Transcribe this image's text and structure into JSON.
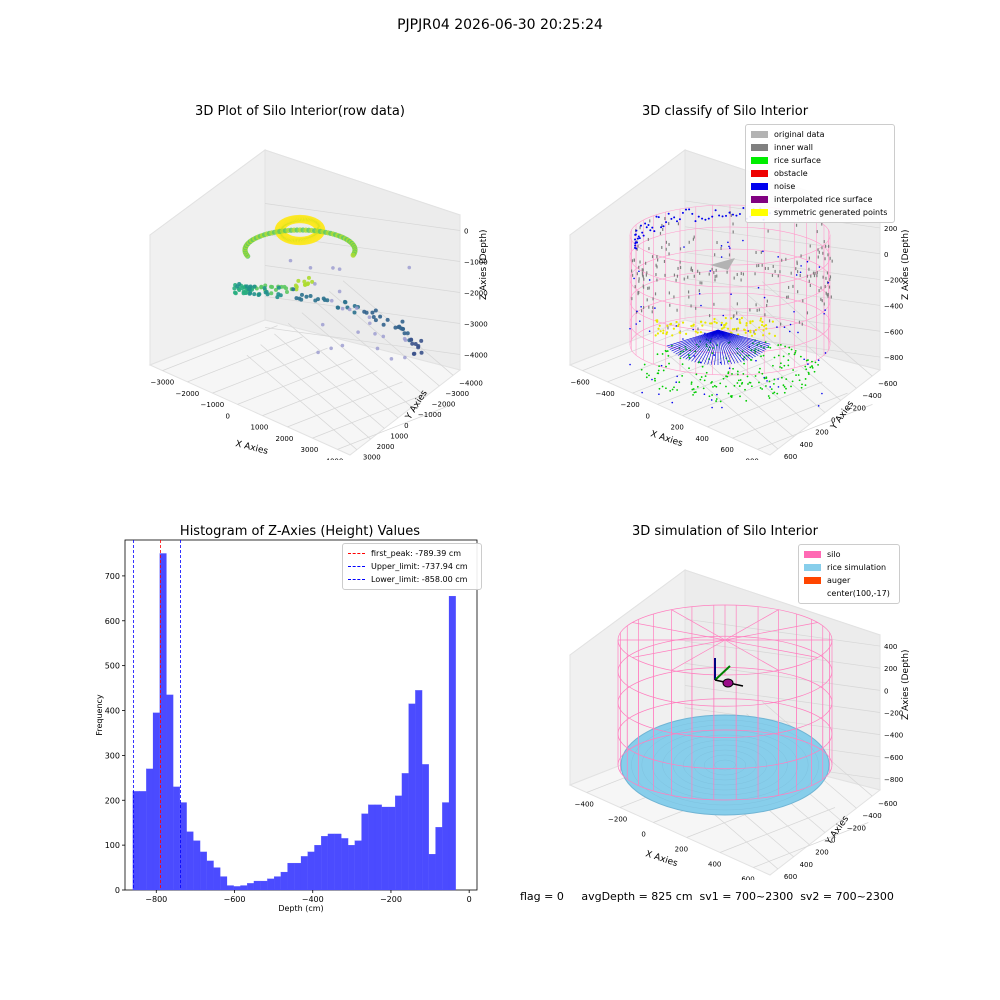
{
  "suptitle": "PJPJR04 2026-06-30 20:25:24",
  "footer": "flag = 0     avgDepth = 825 cm  sv1 = 700~2300  sv2 = 700~2300",
  "panels": {
    "raw": {
      "title": "3D Plot of Silo Interior(row data)",
      "xlabel": "X Axies",
      "ylabel": "Y Axies",
      "zlabel": "Z Axies (Depth)",
      "xticks": [
        "−3000",
        "−2000",
        "−1000",
        "0",
        "1000",
        "2000",
        "3000",
        "4000"
      ],
      "yticks": [
        "3000",
        "2000",
        "1000",
        "0",
        "−1000",
        "−2000",
        "−3000",
        "−4000"
      ],
      "zticks": [
        "0",
        "−1000",
        "−2000",
        "−3000",
        "−4000"
      ]
    },
    "classify": {
      "title": "3D classify of Silo Interior",
      "xlabel": "X Axies",
      "ylabel": "Y Axies",
      "zlabel": "Z Axies (Depth)",
      "xticks": [
        "−600",
        "−400",
        "−200",
        "0",
        "200",
        "400",
        "600",
        "800"
      ],
      "yticks": [
        "600",
        "400",
        "200",
        "0",
        "−200",
        "−400",
        "−600"
      ],
      "zticks": [
        "200",
        "0",
        "−200",
        "−400",
        "−600",
        "−800"
      ],
      "legend": [
        {
          "label": "original data",
          "color": "#b3b3b3"
        },
        {
          "label": "inner wall",
          "color": "#808080"
        },
        {
          "label": "rice surface",
          "color": "#00ee00"
        },
        {
          "label": "obstacle",
          "color": "#ee0000"
        },
        {
          "label": "noise",
          "color": "#0000ee"
        },
        {
          "label": "interpolated rice surface",
          "color": "#800080"
        },
        {
          "label": "symmetric generated points",
          "color": "#ffff00"
        }
      ]
    },
    "hist": {
      "title": "Histogram of Z-Axies (Height) Values",
      "legend": [
        {
          "label": "first_peak: -789.39 cm",
          "color": "#ff0000"
        },
        {
          "label": "Upper_limit: -737.94 cm",
          "color": "#0000ff"
        },
        {
          "label": "Lower_limit: -858.00 cm",
          "color": "#0000ff"
        }
      ]
    },
    "sim": {
      "title": "3D simulation of Silo Interior",
      "xlabel": "X Axies",
      "ylabel": "Y Axies",
      "zlabel": "Z Axies (Depth)",
      "xticks": [
        "−400",
        "−200",
        "0",
        "200",
        "400",
        "600"
      ],
      "yticks": [
        "600",
        "400",
        "200",
        "0",
        "−200",
        "−400",
        "−600"
      ],
      "zticks": [
        "400",
        "200",
        "0",
        "−200",
        "−400",
        "−600",
        "−800"
      ],
      "legend": [
        {
          "label": "silo",
          "color": "#ff69b4"
        },
        {
          "label": "rice simulation",
          "color": "#87ceeb"
        },
        {
          "label": "auger",
          "color": "#ff4500"
        },
        {
          "label": "center(100,-17)",
          "color": ""
        }
      ]
    }
  },
  "chart_data": {
    "type": "bar",
    "title": "Histogram of Z-Axies (Height) Values",
    "xlabel": "Depth (cm)",
    "ylabel": "Frequency",
    "bar_color": "#4b4bff",
    "xlim": [
      -880,
      20
    ],
    "ylim": [
      0,
      780
    ],
    "xticks": [
      -800,
      -600,
      -400,
      -200,
      0
    ],
    "xtick_labels": [
      "−800",
      "−600",
      "−400",
      "−200",
      "0"
    ],
    "yticks": [
      0,
      100,
      200,
      300,
      400,
      500,
      600,
      700
    ],
    "bin_start": -860,
    "bin_width": 17.2,
    "values": [
      220,
      220,
      270,
      395,
      750,
      435,
      230,
      195,
      130,
      110,
      85,
      65,
      50,
      30,
      10,
      8,
      10,
      15,
      20,
      20,
      25,
      30,
      40,
      60,
      60,
      75,
      85,
      100,
      120,
      125,
      125,
      115,
      100,
      110,
      170,
      190,
      190,
      185,
      185,
      210,
      260,
      415,
      445,
      280,
      80,
      140,
      195,
      655
    ],
    "vlines": [
      {
        "x": -789.39,
        "color": "#ff0000",
        "label": "first_peak: -789.39 cm"
      },
      {
        "x": -737.94,
        "color": "#0000ff",
        "label": "Upper_limit: -737.94 cm"
      },
      {
        "x": -858.0,
        "color": "#0000ff",
        "label": "Lower_limit: -858.00 cm"
      }
    ]
  }
}
